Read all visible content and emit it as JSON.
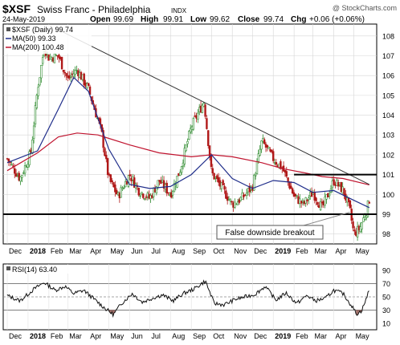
{
  "header": {
    "symbol": "$XSF",
    "name": "Swiss Franc - Philadelphia",
    "exchange": "INDX",
    "watermark": "@ StockCharts.com",
    "date": "24-May-2019",
    "open_label": "Open",
    "open": "99.69",
    "high_label": "High",
    "high": "99.91",
    "low_label": "Low",
    "low": "99.62",
    "close_label": "Close",
    "close": "99.74",
    "chg_label": "Chg",
    "chg": "+0.06 (+0.06%)"
  },
  "legend": {
    "price": "$XSF (Daily) 99.74",
    "ma50": "MA(50) 99.33",
    "ma200": "MA(200) 100.48"
  },
  "annotation": "False downside breakout",
  "rsi_label": "RSI(14) 63.40",
  "colors": {
    "ma50": "#1f2d8a",
    "ma200": "#c0142f",
    "candle_up": "#2e8b2e",
    "candle_down": "#b01818",
    "rsi_line": "#111111",
    "rsi_fill": "#a0706a"
  },
  "chart_data": [
    {
      "type": "candlestick",
      "title": "$XSF Swiss Franc - Philadelphia INDX",
      "x_tick_labels": [
        "Dec",
        "2018",
        "Feb",
        "Mar",
        "Apr",
        "May",
        "Jun",
        "Jul",
        "Aug",
        "Sep",
        "Oct",
        "Nov",
        "Dec",
        "2019",
        "Feb",
        "Mar",
        "Apr",
        "May"
      ],
      "y_ticks": [
        98,
        99,
        100,
        101,
        102,
        103,
        104,
        105,
        106,
        107,
        108
      ],
      "ylim": [
        97.5,
        108.6
      ],
      "grid": true,
      "legend_position": "top-left",
      "close_path": [
        {
          "date": "2017-12-01",
          "value": 101.8
        },
        {
          "date": "2017-12-20",
          "value": 100.8
        },
        {
          "date": "2018-01-05",
          "value": 102.1
        },
        {
          "date": "2018-01-15",
          "value": 105.3
        },
        {
          "date": "2018-01-25",
          "value": 107.4
        },
        {
          "date": "2018-02-01",
          "value": 106.9
        },
        {
          "date": "2018-02-15",
          "value": 107.0
        },
        {
          "date": "2018-03-01",
          "value": 105.8
        },
        {
          "date": "2018-03-15",
          "value": 106.3
        },
        {
          "date": "2018-04-01",
          "value": 105.3
        },
        {
          "date": "2018-04-20",
          "value": 103.2
        },
        {
          "date": "2018-05-01",
          "value": 100.8
        },
        {
          "date": "2018-05-15",
          "value": 99.9
        },
        {
          "date": "2018-06-01",
          "value": 101.0
        },
        {
          "date": "2018-06-15",
          "value": 100.2
        },
        {
          "date": "2018-07-01",
          "value": 99.8
        },
        {
          "date": "2018-07-15",
          "value": 100.7
        },
        {
          "date": "2018-08-01",
          "value": 100.0
        },
        {
          "date": "2018-08-15",
          "value": 101.2
        },
        {
          "date": "2018-09-01",
          "value": 103.4
        },
        {
          "date": "2018-09-20",
          "value": 104.7
        },
        {
          "date": "2018-10-01",
          "value": 101.1
        },
        {
          "date": "2018-10-15",
          "value": 100.4
        },
        {
          "date": "2018-11-01",
          "value": 99.5
        },
        {
          "date": "2018-11-15",
          "value": 99.8
        },
        {
          "date": "2018-12-01",
          "value": 100.4
        },
        {
          "date": "2018-12-15",
          "value": 102.7
        },
        {
          "date": "2019-01-01",
          "value": 101.8
        },
        {
          "date": "2019-01-15",
          "value": 101.3
        },
        {
          "date": "2019-02-01",
          "value": 99.9
        },
        {
          "date": "2019-02-15",
          "value": 99.5
        },
        {
          "date": "2019-03-01",
          "value": 100.1
        },
        {
          "date": "2019-03-15",
          "value": 99.3
        },
        {
          "date": "2019-04-01",
          "value": 100.7
        },
        {
          "date": "2019-04-15",
          "value": 100.2
        },
        {
          "date": "2019-04-25",
          "value": 99.2
        },
        {
          "date": "2019-05-01",
          "value": 98.0
        },
        {
          "date": "2019-05-10",
          "value": 98.3
        },
        {
          "date": "2019-05-20",
          "value": 99.2
        },
        {
          "date": "2019-05-24",
          "value": 99.74
        }
      ],
      "ma50_path": [
        {
          "date": "2017-12-01",
          "value": 101.6
        },
        {
          "date": "2018-01-15",
          "value": 102.2
        },
        {
          "date": "2018-02-15",
          "value": 104.3
        },
        {
          "date": "2018-03-10",
          "value": 105.9
        },
        {
          "date": "2018-04-01",
          "value": 105.2
        },
        {
          "date": "2018-05-01",
          "value": 102.3
        },
        {
          "date": "2018-06-01",
          "value": 100.5
        },
        {
          "date": "2018-07-01",
          "value": 100.3
        },
        {
          "date": "2018-08-01",
          "value": 100.4
        },
        {
          "date": "2018-09-01",
          "value": 101.0
        },
        {
          "date": "2018-10-01",
          "value": 102.0
        },
        {
          "date": "2018-11-01",
          "value": 100.8
        },
        {
          "date": "2018-12-01",
          "value": 100.3
        },
        {
          "date": "2019-01-01",
          "value": 100.7
        },
        {
          "date": "2019-02-01",
          "value": 100.6
        },
        {
          "date": "2019-03-01",
          "value": 100.1
        },
        {
          "date": "2019-04-01",
          "value": 100.2
        },
        {
          "date": "2019-05-01",
          "value": 99.7
        },
        {
          "date": "2019-05-24",
          "value": 99.33
        }
      ],
      "ma200_path": [
        {
          "date": "2017-12-01",
          "value": 101.2
        },
        {
          "date": "2018-01-15",
          "value": 102.1
        },
        {
          "date": "2018-02-15",
          "value": 102.9
        },
        {
          "date": "2018-03-15",
          "value": 103.1
        },
        {
          "date": "2018-04-15",
          "value": 103.0
        },
        {
          "date": "2018-06-01",
          "value": 102.5
        },
        {
          "date": "2018-07-15",
          "value": 102.1
        },
        {
          "date": "2018-09-01",
          "value": 101.9
        },
        {
          "date": "2018-10-01",
          "value": 102.0
        },
        {
          "date": "2018-11-01",
          "value": 101.9
        },
        {
          "date": "2018-12-15",
          "value": 101.6
        },
        {
          "date": "2019-01-15",
          "value": 101.3
        },
        {
          "date": "2019-02-15",
          "value": 101.1
        },
        {
          "date": "2019-03-15",
          "value": 100.9
        },
        {
          "date": "2019-04-15",
          "value": 100.8
        },
        {
          "date": "2019-05-24",
          "value": 100.48
        }
      ],
      "trendline_down": [
        {
          "date": "2018-02-10",
          "value": 108.4
        },
        {
          "date": "2019-05-24",
          "value": 100.5
        }
      ],
      "support_level": 99.0,
      "resistance_level": 101.0,
      "resistance_start": "2019-02-01"
    },
    {
      "type": "line",
      "title": "RSI(14)",
      "y_ticks": [
        10,
        30,
        50,
        70,
        90
      ],
      "ylim": [
        0,
        100
      ],
      "reference_lines": [
        30,
        50,
        70
      ],
      "values": [
        {
          "date": "2017-12-01",
          "value": 52
        },
        {
          "date": "2017-12-20",
          "value": 44
        },
        {
          "date": "2018-01-10",
          "value": 62
        },
        {
          "date": "2018-01-25",
          "value": 72
        },
        {
          "date": "2018-02-10",
          "value": 60
        },
        {
          "date": "2018-02-25",
          "value": 66
        },
        {
          "date": "2018-03-10",
          "value": 55
        },
        {
          "date": "2018-03-25",
          "value": 60
        },
        {
          "date": "2018-04-10",
          "value": 46
        },
        {
          "date": "2018-04-25",
          "value": 33
        },
        {
          "date": "2018-05-08",
          "value": 23
        },
        {
          "date": "2018-05-20",
          "value": 40
        },
        {
          "date": "2018-06-05",
          "value": 55
        },
        {
          "date": "2018-06-20",
          "value": 42
        },
        {
          "date": "2018-07-05",
          "value": 48
        },
        {
          "date": "2018-07-20",
          "value": 53
        },
        {
          "date": "2018-08-05",
          "value": 44
        },
        {
          "date": "2018-08-20",
          "value": 55
        },
        {
          "date": "2018-09-05",
          "value": 62
        },
        {
          "date": "2018-09-22",
          "value": 74
        },
        {
          "date": "2018-10-05",
          "value": 40
        },
        {
          "date": "2018-10-20",
          "value": 38
        },
        {
          "date": "2018-11-05",
          "value": 46
        },
        {
          "date": "2018-11-20",
          "value": 50
        },
        {
          "date": "2018-12-05",
          "value": 54
        },
        {
          "date": "2018-12-20",
          "value": 66
        },
        {
          "date": "2019-01-05",
          "value": 45
        },
        {
          "date": "2019-01-20",
          "value": 56
        },
        {
          "date": "2019-02-05",
          "value": 40
        },
        {
          "date": "2019-02-20",
          "value": 52
        },
        {
          "date": "2019-03-05",
          "value": 44
        },
        {
          "date": "2019-03-20",
          "value": 48
        },
        {
          "date": "2019-04-01",
          "value": 60
        },
        {
          "date": "2019-04-15",
          "value": 55
        },
        {
          "date": "2019-04-28",
          "value": 36
        },
        {
          "date": "2019-05-05",
          "value": 24
        },
        {
          "date": "2019-05-12",
          "value": 28
        },
        {
          "date": "2019-05-20",
          "value": 48
        },
        {
          "date": "2019-05-24",
          "value": 63.4
        }
      ]
    }
  ]
}
